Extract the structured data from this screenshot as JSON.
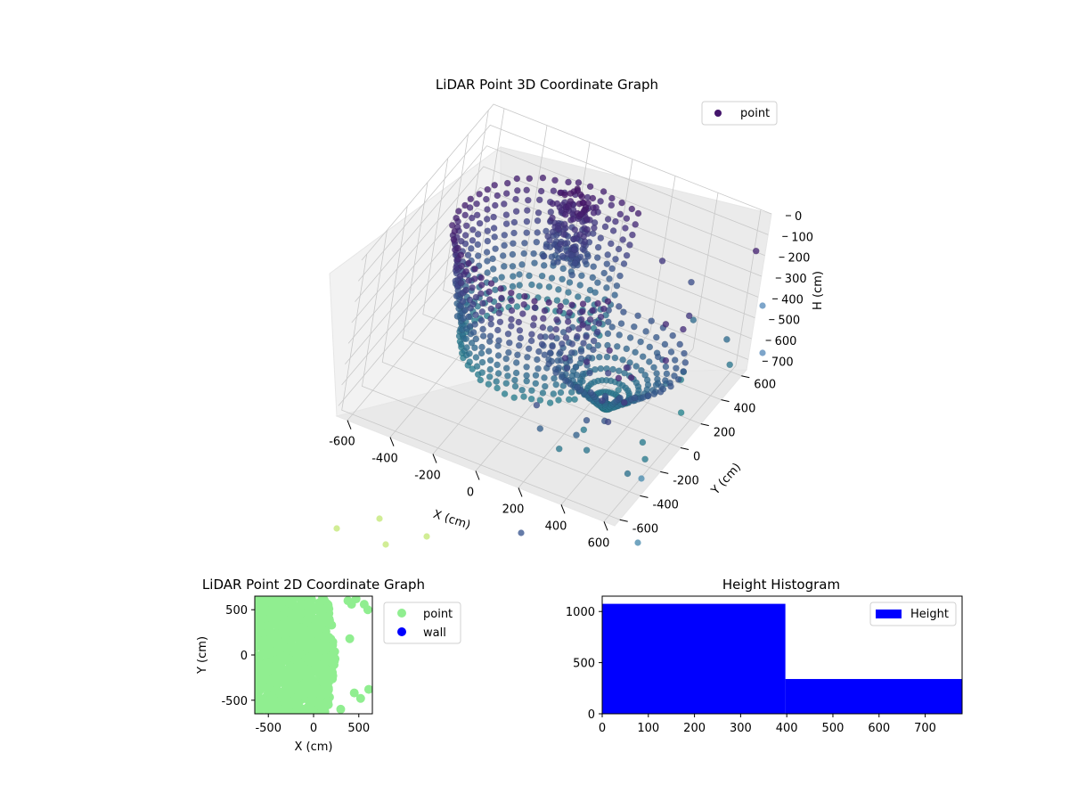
{
  "chart_data": [
    {
      "type": "scatter",
      "title": "LiDAR Point 3D Coordinate Graph",
      "xlabel": "X (cm)",
      "ylabel": "Y (cm)",
      "zlabel": "H (cm)",
      "xlim": [
        -650,
        650
      ],
      "ylim": [
        -650,
        650
      ],
      "zlim": [
        750,
        0
      ],
      "x_ticks": [
        -600,
        -400,
        -200,
        0,
        200,
        400,
        600
      ],
      "y_ticks": [
        -600,
        -400,
        -200,
        0,
        200,
        400,
        600
      ],
      "z_ticks": [
        0,
        100,
        200,
        300,
        400,
        500,
        600,
        700
      ],
      "legend": {
        "placement": "top-right",
        "entries": [
          "point"
        ]
      },
      "colormap": "viridis",
      "grid": true,
      "series": [
        {
          "name": "point",
          "color": "#44156c",
          "structures": [
            {
              "kind": "cylinder-wall",
              "center_x": -100,
              "center_y": 150,
              "radius": 430,
              "h_range": [
                150,
                700
              ],
              "angle_range_deg": [
                60,
                330
              ]
            },
            {
              "kind": "dense-cluster",
              "x": -150,
              "y": 450,
              "h_range": [
                100,
                450
              ]
            },
            {
              "kind": "floor-disc",
              "center_x": 300,
              "center_y": 0,
              "radius": 300,
              "h": 700
            },
            {
              "kind": "sparse-right-side",
              "x_range": [
                300,
                650
              ],
              "y_range": [
                -650,
                650
              ]
            },
            {
              "kind": "outliers",
              "x_range": [
                -650,
                600
              ],
              "y_range": [
                -650,
                -600
              ],
              "h": 750
            }
          ]
        }
      ]
    },
    {
      "type": "scatter",
      "title": "LiDAR Point 2D Coordinate Graph",
      "xlabel": "X (cm)",
      "ylabel": "Y (cm)",
      "xlim": [
        -650,
        650
      ],
      "ylim": [
        -650,
        650
      ],
      "x_ticks": [
        -500,
        0,
        500
      ],
      "y_ticks": [
        -500,
        0,
        500
      ],
      "legend": {
        "placement": "outside-right",
        "entries": [
          "point",
          "wall"
        ]
      },
      "series": [
        {
          "name": "point",
          "color": "#90ee90",
          "x_range": [
            -650,
            250
          ],
          "y_range": [
            -650,
            650
          ]
        },
        {
          "name": "wall",
          "color": "#0000ff",
          "x": [],
          "y": []
        }
      ]
    },
    {
      "type": "bar",
      "title": "Height Histogram",
      "xlabel": "",
      "ylabel": "",
      "xlim": [
        0,
        780
      ],
      "ylim": [
        0,
        1150
      ],
      "x_ticks": [
        0,
        100,
        200,
        300,
        400,
        500,
        600,
        700
      ],
      "y_ticks": [
        0,
        500,
        1000
      ],
      "legend": {
        "placement": "top-right",
        "entries": [
          "Height"
        ]
      },
      "series": [
        {
          "name": "Height",
          "color": "#0000ff",
          "bins": [
            {
              "from": 0,
              "to": 397,
              "count": 1075
            },
            {
              "from": 397,
              "to": 780,
              "count": 340
            }
          ]
        }
      ]
    }
  ]
}
